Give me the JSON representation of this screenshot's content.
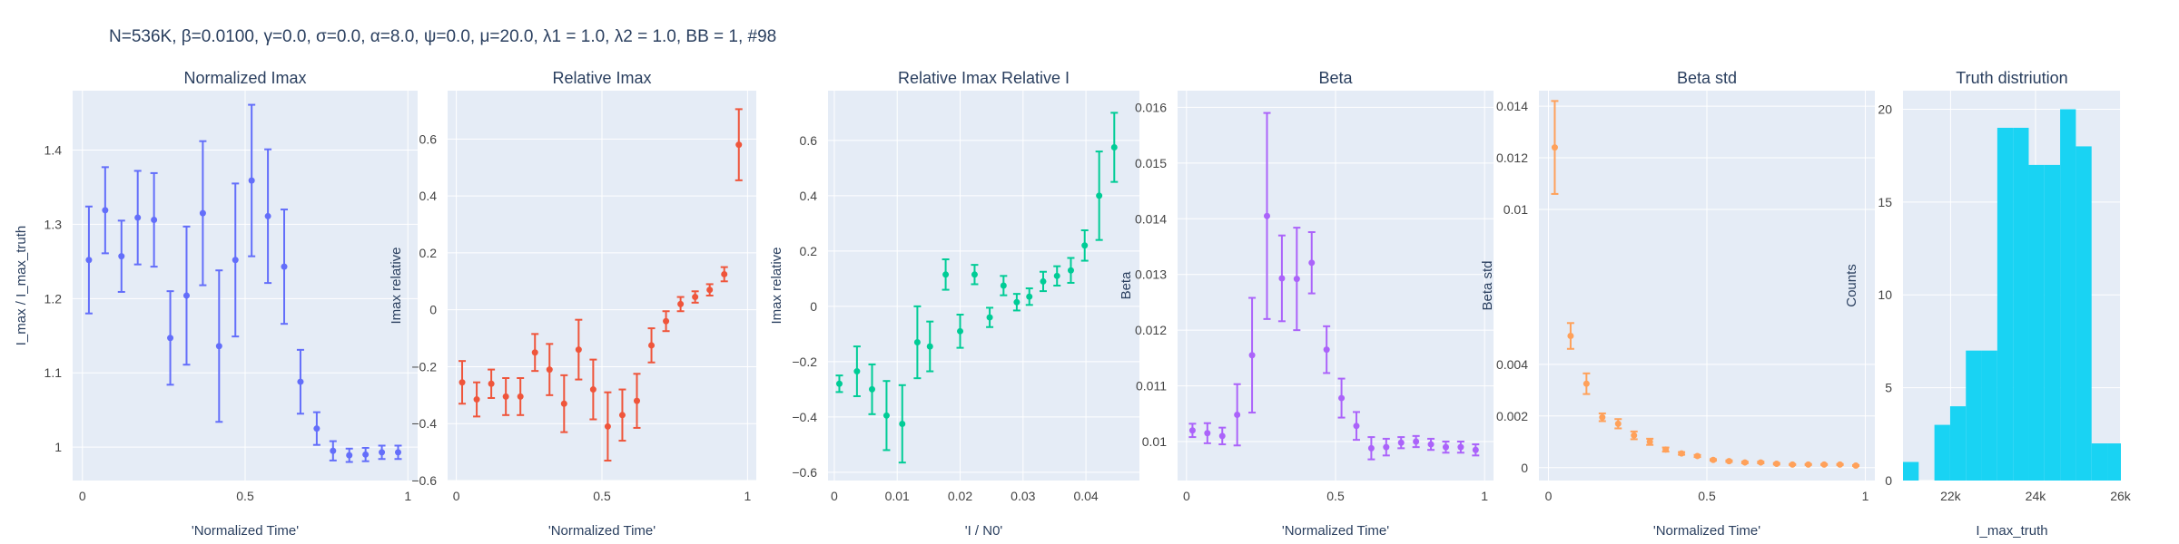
{
  "figure": {
    "title": "N=536K, β=0.0100, γ=0.0, σ=0.0,  α=8.0, ψ=0.0, μ=20.0, λ1 = 1.0, λ2 = 1.0, BB = 1, #98"
  },
  "chart_data": [
    {
      "type": "scatter",
      "title": "Normalized Imax",
      "xlabel": "'Normalized Time'",
      "ylabel": "I_max / I_max_truth",
      "xlim": [
        -0.03,
        1.03
      ],
      "ylim": [
        0.955,
        1.48
      ],
      "xticks": [
        0,
        0.5,
        1
      ],
      "xticklabels": [
        "0",
        "0.5",
        "1"
      ],
      "yticks": [
        1.0,
        1.1,
        1.2,
        1.3,
        1.4
      ],
      "yticklabels": [
        "1",
        "1.1",
        "1.2",
        "1.3",
        "1.4"
      ],
      "color": "#636efa",
      "grid": true,
      "error_bars": true,
      "x": [
        0.02,
        0.07,
        0.12,
        0.17,
        0.22,
        0.27,
        0.32,
        0.37,
        0.42,
        0.47,
        0.52,
        0.57,
        0.62,
        0.67,
        0.72,
        0.77,
        0.82,
        0.87,
        0.92,
        0.97
      ],
      "y": [
        1.252,
        1.319,
        1.257,
        1.309,
        1.306,
        1.147,
        1.204,
        1.315,
        1.136,
        1.252,
        1.359,
        1.311,
        1.243,
        1.088,
        1.025,
        0.995,
        0.989,
        0.99,
        0.993,
        0.993
      ],
      "error": [
        0.072,
        0.058,
        0.048,
        0.063,
        0.063,
        0.063,
        0.093,
        0.097,
        0.102,
        0.103,
        0.102,
        0.09,
        0.077,
        0.043,
        0.022,
        0.013,
        0.009,
        0.009,
        0.009,
        0.009
      ]
    },
    {
      "type": "scatter",
      "title": "Relative Imax",
      "xlabel": "'Normalized Time'",
      "ylabel": "Imax relative",
      "xlim": [
        -0.03,
        1.03
      ],
      "ylim": [
        -0.6,
        0.77
      ],
      "xticks": [
        0,
        0.5,
        1
      ],
      "xticklabels": [
        "0",
        "0.5",
        "1"
      ],
      "yticks": [
        -0.6,
        -0.4,
        -0.2,
        0,
        0.2,
        0.4,
        0.6
      ],
      "yticklabels": [
        "−0.6",
        "−0.4",
        "−0.2",
        "0",
        "0.2",
        "0.4",
        "0.6"
      ],
      "color": "#ef553b",
      "grid": true,
      "error_bars": true,
      "x": [
        0.02,
        0.07,
        0.12,
        0.17,
        0.22,
        0.27,
        0.32,
        0.37,
        0.42,
        0.47,
        0.52,
        0.57,
        0.62,
        0.67,
        0.72,
        0.77,
        0.82,
        0.87,
        0.92,
        0.97
      ],
      "y": [
        -0.255,
        -0.315,
        -0.26,
        -0.305,
        -0.305,
        -0.15,
        -0.21,
        -0.33,
        -0.14,
        -0.28,
        -0.41,
        -0.37,
        -0.32,
        -0.125,
        -0.04,
        0.02,
        0.045,
        0.07,
        0.125,
        0.58
      ],
      "error": [
        0.075,
        0.06,
        0.05,
        0.065,
        0.065,
        0.065,
        0.09,
        0.1,
        0.105,
        0.105,
        0.12,
        0.09,
        0.095,
        0.06,
        0.035,
        0.025,
        0.02,
        0.02,
        0.025,
        0.125
      ]
    },
    {
      "type": "scatter",
      "title": "Relative Imax Relative I",
      "xlabel": "'I / N0'",
      "ylabel": "Imax relative",
      "xlim": [
        -0.001,
        0.0485
      ],
      "ylim": [
        -0.63,
        0.78
      ],
      "xticks": [
        0,
        0.01,
        0.02,
        0.03,
        0.04
      ],
      "xticklabels": [
        "0",
        "0.01",
        "0.02",
        "0.03",
        "0.04"
      ],
      "yticks": [
        -0.6,
        -0.4,
        -0.2,
        0,
        0.2,
        0.4,
        0.6
      ],
      "yticklabels": [
        "−0.6",
        "−0.4",
        "−0.2",
        "0",
        "0.2",
        "0.4",
        "0.6"
      ],
      "color": "#00cc96",
      "grid": true,
      "error_bars": true,
      "x": [
        0.0008,
        0.0036,
        0.006,
        0.0083,
        0.0108,
        0.0132,
        0.0152,
        0.0177,
        0.02,
        0.0223,
        0.0247,
        0.0269,
        0.029,
        0.031,
        0.0332,
        0.0354,
        0.0376,
        0.0398,
        0.0421,
        0.0445
      ],
      "y": [
        -0.28,
        -0.235,
        -0.3,
        -0.395,
        -0.425,
        -0.13,
        -0.145,
        0.115,
        -0.09,
        0.115,
        -0.04,
        0.075,
        0.015,
        0.035,
        0.09,
        0.11,
        0.13,
        0.22,
        0.4,
        0.575
      ],
      "error": [
        0.03,
        0.09,
        0.09,
        0.125,
        0.14,
        0.13,
        0.09,
        0.055,
        0.06,
        0.035,
        0.035,
        0.035,
        0.03,
        0.03,
        0.035,
        0.035,
        0.045,
        0.055,
        0.16,
        0.125
      ]
    },
    {
      "type": "scatter",
      "title": "Beta",
      "xlabel": "'Normalized Time'",
      "ylabel": "Beta",
      "xlim": [
        -0.03,
        1.03
      ],
      "ylim": [
        0.0093,
        0.0163
      ],
      "xticks": [
        0,
        0.5,
        1
      ],
      "xticklabels": [
        "0",
        "0.5",
        "1"
      ],
      "yticks": [
        0.01,
        0.011,
        0.012,
        0.013,
        0.014,
        0.015,
        0.016
      ],
      "yticklabels": [
        "0.01",
        "0.011",
        "0.012",
        "0.013",
        "0.014",
        "0.015",
        "0.016"
      ],
      "color": "#ab63fa",
      "grid": true,
      "error_bars": true,
      "x": [
        0.02,
        0.07,
        0.12,
        0.17,
        0.22,
        0.27,
        0.32,
        0.37,
        0.42,
        0.47,
        0.52,
        0.57,
        0.62,
        0.67,
        0.72,
        0.77,
        0.82,
        0.87,
        0.92,
        0.97
      ],
      "y": [
        0.0102,
        0.01015,
        0.0101,
        0.01048,
        0.01155,
        0.01405,
        0.01293,
        0.01292,
        0.01321,
        0.01165,
        0.01078,
        0.01028,
        0.00988,
        0.0099,
        0.00998,
        0.01,
        0.00995,
        0.0099,
        0.0099,
        0.00985
      ],
      "error": [
        0.00012,
        0.00018,
        0.00015,
        0.00055,
        0.00103,
        0.00185,
        0.00077,
        0.00092,
        0.00055,
        0.00042,
        0.00035,
        0.00025,
        0.0002,
        0.00015,
        0.0001,
        0.0001,
        0.0001,
        0.0001,
        0.0001,
        0.0001
      ]
    },
    {
      "type": "scatter",
      "title": "Beta std",
      "xlabel": "'Normalized Time'",
      "ylabel": "Beta std",
      "xlim": [
        -0.03,
        1.03
      ],
      "ylim": [
        -0.0005,
        0.0146
      ],
      "xticks": [
        0,
        0.5,
        1
      ],
      "xticklabels": [
        "0",
        "0.5",
        "1"
      ],
      "yticks": [
        0,
        0.002,
        0.004,
        0.01,
        0.012,
        0.014
      ],
      "yticklabels": [
        "0",
        "0.002",
        "0.004",
        "0.01",
        "0.012",
        "0.014"
      ],
      "color": "#ffa15a",
      "grid": true,
      "error_bars": true,
      "x": [
        0.02,
        0.07,
        0.12,
        0.17,
        0.22,
        0.27,
        0.32,
        0.37,
        0.42,
        0.47,
        0.52,
        0.57,
        0.62,
        0.67,
        0.72,
        0.77,
        0.82,
        0.87,
        0.92,
        0.97
      ],
      "y": [
        0.0124,
        0.0051,
        0.00325,
        0.00195,
        0.0017,
        0.00125,
        0.001,
        0.0007,
        0.00055,
        0.00045,
        0.0003,
        0.00025,
        0.0002,
        0.0002,
        0.00015,
        0.00012,
        0.00012,
        0.00012,
        0.00012,
        8e-05
      ],
      "error": [
        0.0018,
        0.0005,
        0.0004,
        0.00015,
        0.00018,
        0.00015,
        0.00012,
        8e-05,
        5e-05,
        4e-05,
        3e-05,
        3e-05,
        3e-05,
        3e-05,
        3e-05,
        2e-05,
        2e-05,
        2e-05,
        2e-05,
        2e-05
      ]
    },
    {
      "type": "bar",
      "title": "Truth distriution",
      "xlabel": "I_max_truth",
      "ylabel": "Counts",
      "xlim": [
        20880,
        26010
      ],
      "ylim": [
        0,
        21
      ],
      "xticks": [
        22000,
        24000,
        26000
      ],
      "xticklabels": [
        "22k",
        "24k",
        "26k"
      ],
      "yticks": [
        0,
        5,
        10,
        15,
        20
      ],
      "yticklabels": [
        "0",
        "5",
        "10",
        "15",
        "20"
      ],
      "color": "#19d3f3",
      "grid": true,
      "bin_edges": [
        20880,
        21250,
        21620,
        21990,
        22360,
        22730,
        23100,
        23470,
        23840,
        24210,
        24580,
        24950,
        25320,
        25690,
        26010
      ],
      "counts": [
        1,
        0,
        3,
        4,
        7,
        7,
        19,
        19,
        17,
        17,
        20,
        18,
        2,
        2
      ]
    }
  ]
}
